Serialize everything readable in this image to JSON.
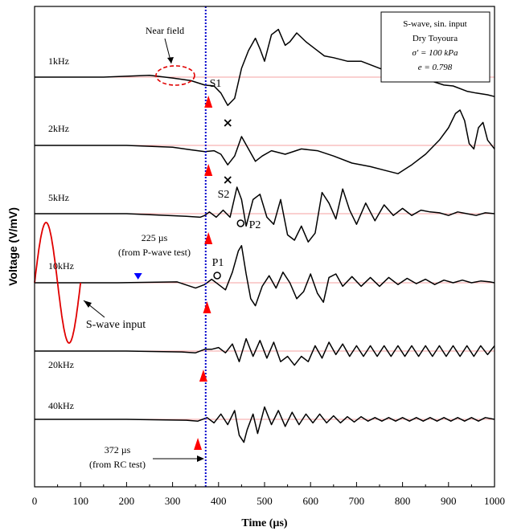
{
  "chart_data": {
    "type": "line",
    "ylabel": "Voltage (V/mV)",
    "xlabel": "Time (µs)",
    "xlim": [
      0,
      1000
    ],
    "xticks": [
      "0",
      "100",
      "200",
      "300",
      "400",
      "500",
      "600",
      "700",
      "800",
      "900",
      "1000"
    ],
    "legend_box": [
      "S-wave, sin. input",
      "Dry Toyoura",
      "σ' = 100 kPa",
      "e = 0.798"
    ],
    "series": [
      {
        "name": "1kHz",
        "points": [
          [
            0,
            0
          ],
          [
            150,
            0
          ],
          [
            250,
            0.1
          ],
          [
            300,
            -0.05
          ],
          [
            340,
            -0.2
          ],
          [
            370,
            -0.45
          ],
          [
            390,
            -0.5
          ],
          [
            405,
            -0.9
          ],
          [
            420,
            -1.6
          ],
          [
            435,
            -1.2
          ],
          [
            450,
            0.5
          ],
          [
            465,
            1.5
          ],
          [
            480,
            2.2
          ],
          [
            490,
            1.6
          ],
          [
            500,
            0.9
          ],
          [
            515,
            2.4
          ],
          [
            530,
            2.7
          ],
          [
            545,
            1.8
          ],
          [
            555,
            2.0
          ],
          [
            570,
            2.5
          ],
          [
            590,
            2.0
          ],
          [
            610,
            1.6
          ],
          [
            630,
            1.2
          ],
          [
            650,
            1.1
          ],
          [
            680,
            0.9
          ],
          [
            710,
            0.9
          ],
          [
            740,
            0.6
          ],
          [
            770,
            0.3
          ],
          [
            800,
            0.2
          ],
          [
            830,
            0.1
          ],
          [
            860,
            -0.2
          ],
          [
            890,
            -0.45
          ],
          [
            910,
            -0.5
          ],
          [
            940,
            -0.8
          ],
          [
            960,
            -0.9
          ],
          [
            985,
            -1.0
          ],
          [
            1000,
            -1.1
          ]
        ]
      },
      {
        "name": "2kHz",
        "points": [
          [
            0,
            0
          ],
          [
            200,
            0
          ],
          [
            300,
            -0.1
          ],
          [
            340,
            -0.25
          ],
          [
            370,
            -0.35
          ],
          [
            390,
            -0.3
          ],
          [
            405,
            -0.5
          ],
          [
            420,
            -1.1
          ],
          [
            435,
            -0.6
          ],
          [
            450,
            0.5
          ],
          [
            465,
            -0.2
          ],
          [
            480,
            -0.9
          ],
          [
            495,
            -0.6
          ],
          [
            515,
            -0.3
          ],
          [
            545,
            -0.5
          ],
          [
            580,
            -0.2
          ],
          [
            615,
            -0.3
          ],
          [
            650,
            -0.6
          ],
          [
            690,
            -1.0
          ],
          [
            730,
            -1.2
          ],
          [
            760,
            -1.4
          ],
          [
            790,
            -1.6
          ],
          [
            820,
            -1.1
          ],
          [
            850,
            -0.5
          ],
          [
            880,
            0.3
          ],
          [
            900,
            1.0
          ],
          [
            915,
            1.8
          ],
          [
            925,
            2.0
          ],
          [
            935,
            1.4
          ],
          [
            945,
            0.1
          ],
          [
            955,
            -0.2
          ],
          [
            965,
            1.0
          ],
          [
            975,
            1.3
          ],
          [
            985,
            0.3
          ],
          [
            1000,
            -0.2
          ]
        ]
      },
      {
        "name": "5kHz",
        "points": [
          [
            0,
            0
          ],
          [
            200,
            0
          ],
          [
            330,
            -0.15
          ],
          [
            360,
            -0.2
          ],
          [
            370,
            -0.1
          ],
          [
            380,
            0.1
          ],
          [
            395,
            -0.2
          ],
          [
            410,
            0.2
          ],
          [
            425,
            -0.2
          ],
          [
            440,
            1.5
          ],
          [
            450,
            0.8
          ],
          [
            460,
            -0.7
          ],
          [
            475,
            0.8
          ],
          [
            490,
            1.1
          ],
          [
            505,
            -0.2
          ],
          [
            520,
            -0.6
          ],
          [
            535,
            0.8
          ],
          [
            550,
            -1.2
          ],
          [
            565,
            -1.5
          ],
          [
            580,
            -0.7
          ],
          [
            595,
            -1.6
          ],
          [
            610,
            -1.1
          ],
          [
            625,
            1.2
          ],
          [
            640,
            0.6
          ],
          [
            655,
            -0.3
          ],
          [
            670,
            1.4
          ],
          [
            685,
            0.2
          ],
          [
            700,
            -0.6
          ],
          [
            720,
            0.6
          ],
          [
            740,
            -0.4
          ],
          [
            760,
            0.5
          ],
          [
            780,
            -0.1
          ],
          [
            800,
            0.3
          ],
          [
            820,
            -0.1
          ],
          [
            840,
            0.2
          ],
          [
            860,
            0.1
          ],
          [
            880,
            0.05
          ],
          [
            900,
            -0.1
          ],
          [
            920,
            0.1
          ],
          [
            940,
            0.0
          ],
          [
            960,
            -0.1
          ],
          [
            980,
            0.05
          ],
          [
            1000,
            0.0
          ]
        ]
      },
      {
        "name": "10kHz",
        "points": [
          [
            0,
            0
          ],
          [
            180,
            0
          ],
          [
            310,
            0.05
          ],
          [
            350,
            -0.3
          ],
          [
            370,
            -0.1
          ],
          [
            385,
            0.2
          ],
          [
            400,
            -0.1
          ],
          [
            415,
            -0.4
          ],
          [
            430,
            0.6
          ],
          [
            443,
            1.8
          ],
          [
            450,
            2.1
          ],
          [
            460,
            0.5
          ],
          [
            470,
            -0.9
          ],
          [
            480,
            -1.3
          ],
          [
            495,
            -0.2
          ],
          [
            510,
            0.4
          ],
          [
            525,
            -0.3
          ],
          [
            540,
            0.6
          ],
          [
            555,
            0.0
          ],
          [
            570,
            -0.9
          ],
          [
            585,
            -0.5
          ],
          [
            600,
            0.5
          ],
          [
            615,
            -0.6
          ],
          [
            628,
            -1.1
          ],
          [
            640,
            0.3
          ],
          [
            655,
            0.5
          ],
          [
            670,
            -0.2
          ],
          [
            690,
            0.35
          ],
          [
            710,
            -0.2
          ],
          [
            730,
            0.3
          ],
          [
            750,
            -0.2
          ],
          [
            770,
            0.3
          ],
          [
            790,
            -0.1
          ],
          [
            810,
            0.25
          ],
          [
            830,
            -0.05
          ],
          [
            850,
            0.2
          ],
          [
            870,
            -0.1
          ],
          [
            890,
            0.15
          ],
          [
            910,
            0.0
          ],
          [
            930,
            0.15
          ],
          [
            950,
            0.0
          ],
          [
            970,
            0.1
          ],
          [
            990,
            0.05
          ],
          [
            1000,
            0.0
          ]
        ]
      },
      {
        "name": "20kHz",
        "points": [
          [
            0,
            0
          ],
          [
            200,
            0
          ],
          [
            320,
            -0.05
          ],
          [
            350,
            -0.1
          ],
          [
            370,
            0.1
          ],
          [
            385,
            0.1
          ],
          [
            400,
            0.2
          ],
          [
            415,
            -0.1
          ],
          [
            430,
            0.4
          ],
          [
            445,
            -0.6
          ],
          [
            460,
            0.7
          ],
          [
            475,
            -0.3
          ],
          [
            490,
            0.6
          ],
          [
            505,
            -0.4
          ],
          [
            520,
            0.5
          ],
          [
            535,
            -0.6
          ],
          [
            550,
            -0.3
          ],
          [
            565,
            -0.8
          ],
          [
            580,
            -0.3
          ],
          [
            595,
            -0.6
          ],
          [
            610,
            0.3
          ],
          [
            625,
            -0.4
          ],
          [
            640,
            0.5
          ],
          [
            655,
            -0.2
          ],
          [
            670,
            0.4
          ],
          [
            685,
            -0.3
          ],
          [
            700,
            0.3
          ],
          [
            715,
            -0.3
          ],
          [
            730,
            0.3
          ],
          [
            745,
            -0.3
          ],
          [
            760,
            0.3
          ],
          [
            775,
            -0.3
          ],
          [
            790,
            0.3
          ],
          [
            805,
            -0.3
          ],
          [
            820,
            0.3
          ],
          [
            835,
            -0.3
          ],
          [
            850,
            0.3
          ],
          [
            865,
            -0.3
          ],
          [
            880,
            0.3
          ],
          [
            895,
            -0.3
          ],
          [
            910,
            0.3
          ],
          [
            925,
            -0.3
          ],
          [
            940,
            0.3
          ],
          [
            955,
            -0.3
          ],
          [
            970,
            0.3
          ],
          [
            985,
            -0.2
          ],
          [
            1000,
            0.3
          ]
        ]
      },
      {
        "name": "40kHz",
        "points": [
          [
            0,
            0
          ],
          [
            200,
            0
          ],
          [
            330,
            -0.05
          ],
          [
            355,
            -0.1
          ],
          [
            375,
            0.1
          ],
          [
            390,
            -0.2
          ],
          [
            405,
            0.3
          ],
          [
            420,
            -0.3
          ],
          [
            435,
            0.5
          ],
          [
            445,
            -0.9
          ],
          [
            455,
            -1.3
          ],
          [
            462,
            -0.6
          ],
          [
            475,
            0.3
          ],
          [
            485,
            -0.8
          ],
          [
            500,
            0.7
          ],
          [
            515,
            -0.3
          ],
          [
            530,
            0.5
          ],
          [
            545,
            -0.4
          ],
          [
            560,
            0.4
          ],
          [
            575,
            -0.3
          ],
          [
            590,
            0.3
          ],
          [
            605,
            -0.2
          ],
          [
            620,
            0.3
          ],
          [
            635,
            -0.2
          ],
          [
            650,
            0.2
          ],
          [
            665,
            -0.2
          ],
          [
            680,
            0.15
          ],
          [
            695,
            -0.15
          ],
          [
            710,
            0.15
          ],
          [
            725,
            -0.1
          ],
          [
            740,
            0.1
          ],
          [
            755,
            -0.1
          ],
          [
            770,
            0.1
          ],
          [
            785,
            -0.1
          ],
          [
            800,
            0.1
          ],
          [
            815,
            -0.1
          ],
          [
            830,
            0.1
          ],
          [
            845,
            -0.1
          ],
          [
            860,
            0.1
          ],
          [
            875,
            -0.1
          ],
          [
            890,
            0.1
          ],
          [
            905,
            -0.1
          ],
          [
            920,
            0.1
          ],
          [
            935,
            -0.1
          ],
          [
            950,
            0.1
          ],
          [
            965,
            -0.1
          ],
          [
            980,
            0.1
          ],
          [
            1000,
            0.0
          ]
        ]
      }
    ],
    "input_wave_label": "S-wave input",
    "input_wave_period_us": 100,
    "annotations": {
      "near_field": "Near field",
      "s1": "S1",
      "s2": "S2",
      "p1": "P1",
      "p2": "P2",
      "p_wave_time": "225 µs",
      "p_wave_source": "(from P-wave test)",
      "rc_time": "372 µs",
      "rc_source": "(from RC test)"
    },
    "reference_line_x": 372,
    "p_wave_marker_x": 225,
    "arrival_markers_x": [
      378,
      378,
      378,
      375,
      367,
      355
    ],
    "p1_x": 397,
    "p2_x": 448,
    "s1_x": 420,
    "s2_x": 420,
    "colors": {
      "trace": "#000000",
      "input": "#e00000",
      "baseline": "#f08080",
      "marker": "#ff0000",
      "reference": "#0000cc",
      "p_marker": "#0000ff"
    }
  }
}
